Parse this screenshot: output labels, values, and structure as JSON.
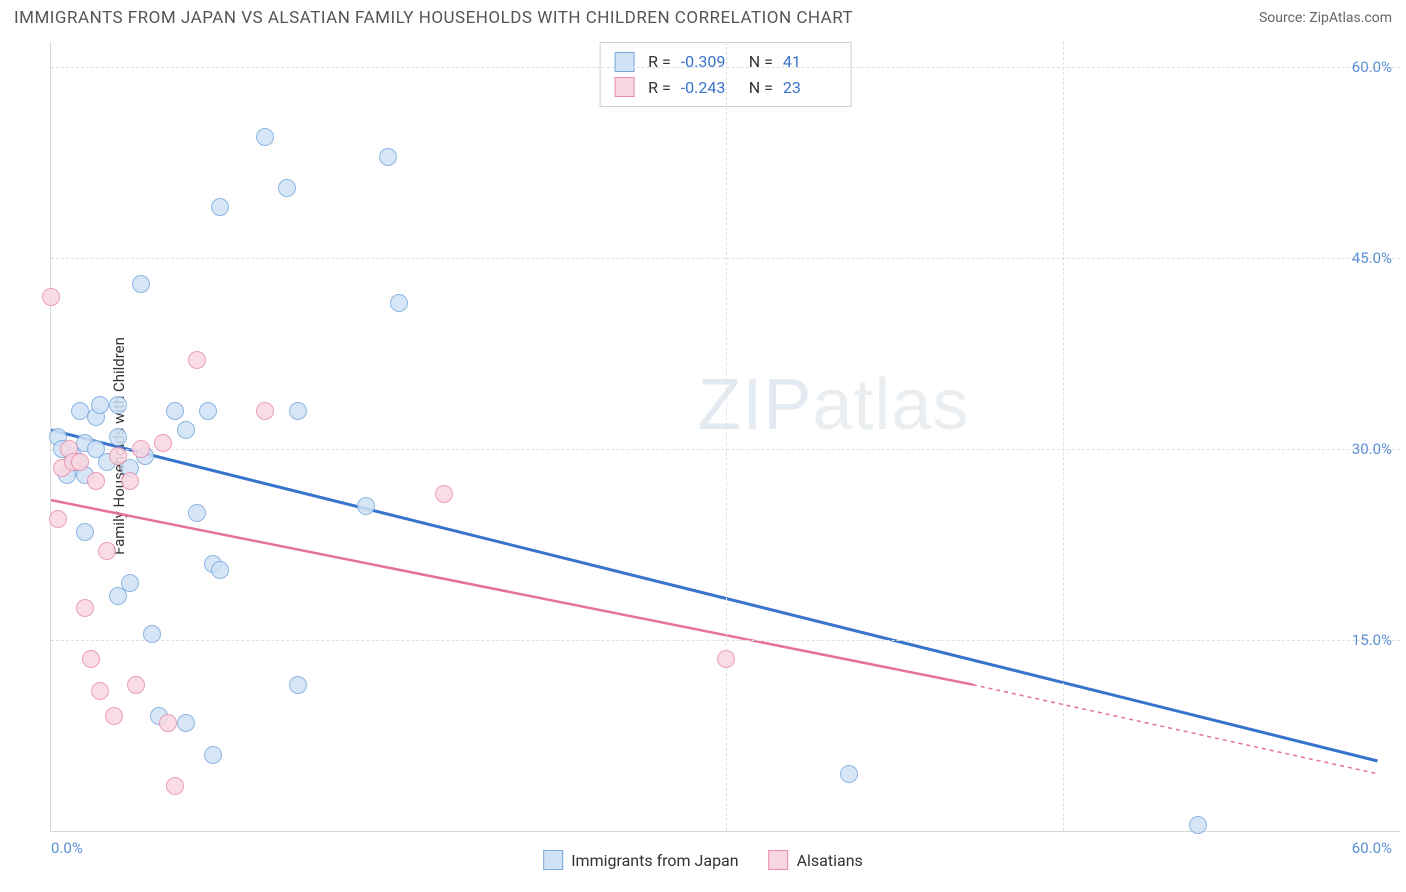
{
  "title": "IMMIGRANTS FROM JAPAN VS ALSATIAN FAMILY HOUSEHOLDS WITH CHILDREN CORRELATION CHART",
  "source_label": "Source: ",
  "source_name": "ZipAtlas.com",
  "ylabel": "Family Households with Children",
  "watermark_bold": "ZIP",
  "watermark_thin": "atlas",
  "chart": {
    "type": "scatter",
    "xlim": [
      0,
      60
    ],
    "ylim": [
      0,
      62
    ],
    "xticks": [
      0.0,
      60.0
    ],
    "xtick_labels": [
      "0.0%",
      "60.0%"
    ],
    "yticks": [
      15.0,
      30.0,
      45.0,
      60.0
    ],
    "ytick_labels": [
      "15.0%",
      "30.0%",
      "45.0%",
      "60.0%"
    ],
    "xgrid_at": [
      30.0,
      45.0
    ],
    "grid_color": "#e0e0e0",
    "background_color": "#ffffff",
    "axis_color": "#d8d8d8",
    "tick_label_color": "#5b8fd6",
    "marker_size": 18,
    "series": [
      {
        "name": "Immigrants from Japan",
        "fill": "#cfe2f6",
        "stroke": "#7aa9dd",
        "points": [
          [
            0.3,
            31.0
          ],
          [
            0.5,
            30.0
          ],
          [
            1.0,
            29.5
          ],
          [
            1.0,
            28.5
          ],
          [
            1.2,
            29.0
          ],
          [
            1.5,
            30.5
          ],
          [
            1.5,
            28.0
          ],
          [
            1.3,
            33.0
          ],
          [
            1.5,
            23.5
          ],
          [
            2.0,
            32.5
          ],
          [
            2.0,
            30.0
          ],
          [
            2.2,
            33.5
          ],
          [
            2.5,
            29.0
          ],
          [
            3.0,
            33.5
          ],
          [
            3.0,
            31.0
          ],
          [
            3.5,
            19.5
          ],
          [
            3.5,
            28.5
          ],
          [
            4.0,
            43.0
          ],
          [
            4.2,
            29.5
          ],
          [
            4.5,
            15.5
          ],
          [
            4.8,
            9.0
          ],
          [
            5.5,
            33.0
          ],
          [
            6.0,
            31.5
          ],
          [
            6.0,
            8.5
          ],
          [
            6.5,
            25.0
          ],
          [
            7.0,
            33.0
          ],
          [
            7.2,
            6.0
          ],
          [
            7.2,
            21.0
          ],
          [
            7.5,
            20.5
          ],
          [
            7.5,
            49.0
          ],
          [
            9.5,
            54.5
          ],
          [
            10.5,
            50.5
          ],
          [
            11.0,
            33.0
          ],
          [
            11.0,
            11.5
          ],
          [
            15.0,
            53.0
          ],
          [
            15.5,
            41.5
          ],
          [
            14.0,
            25.5
          ],
          [
            35.5,
            4.5
          ],
          [
            51.0,
            0.5
          ],
          [
            3.0,
            18.5
          ],
          [
            0.7,
            28.0
          ]
        ],
        "trend": {
          "x1": 0.0,
          "y1": 31.5,
          "x2": 59.0,
          "y2": 5.5,
          "color": "#3874cb",
          "width": 3,
          "dash_extend": false
        }
      },
      {
        "name": "Alsatians",
        "fill": "#f8d7e1",
        "stroke": "#e98fab",
        "points": [
          [
            0.0,
            42.0
          ],
          [
            0.3,
            24.5
          ],
          [
            0.5,
            28.5
          ],
          [
            0.8,
            30.0
          ],
          [
            1.0,
            29.0
          ],
          [
            1.3,
            29.0
          ],
          [
            1.5,
            17.5
          ],
          [
            1.8,
            13.5
          ],
          [
            2.0,
            27.5
          ],
          [
            2.2,
            11.0
          ],
          [
            2.5,
            22.0
          ],
          [
            2.8,
            9.0
          ],
          [
            3.5,
            27.5
          ],
          [
            3.8,
            11.5
          ],
          [
            4.0,
            30.0
          ],
          [
            5.0,
            30.5
          ],
          [
            5.2,
            8.5
          ],
          [
            5.5,
            3.5
          ],
          [
            6.5,
            37.0
          ],
          [
            9.5,
            33.0
          ],
          [
            17.5,
            26.5
          ],
          [
            30.0,
            13.5
          ],
          [
            3.0,
            29.5
          ]
        ],
        "trend": {
          "x1": 0.0,
          "y1": 26.0,
          "x2": 41.0,
          "y2": 11.5,
          "color": "#e57298",
          "width": 2.5,
          "dash_extend": true,
          "dash_x2": 59.0,
          "dash_y2": 4.5
        }
      }
    ]
  },
  "legend_top": {
    "rows": [
      {
        "swatch_fill": "#cfe2f6",
        "swatch_stroke": "#7aa9dd",
        "r_label": "R =",
        "r_val": "-0.309",
        "n_label": "N =",
        "n_val": "41"
      },
      {
        "swatch_fill": "#f8d7e1",
        "swatch_stroke": "#e98fab",
        "r_label": "R =",
        "r_val": "-0.243",
        "n_label": "N =",
        "n_val": "23"
      }
    ]
  },
  "legend_bottom": {
    "items": [
      {
        "swatch_fill": "#cfe2f6",
        "swatch_stroke": "#7aa9dd",
        "label": "Immigrants from Japan"
      },
      {
        "swatch_fill": "#f8d7e1",
        "swatch_stroke": "#e98fab",
        "label": "Alsatians"
      }
    ]
  }
}
